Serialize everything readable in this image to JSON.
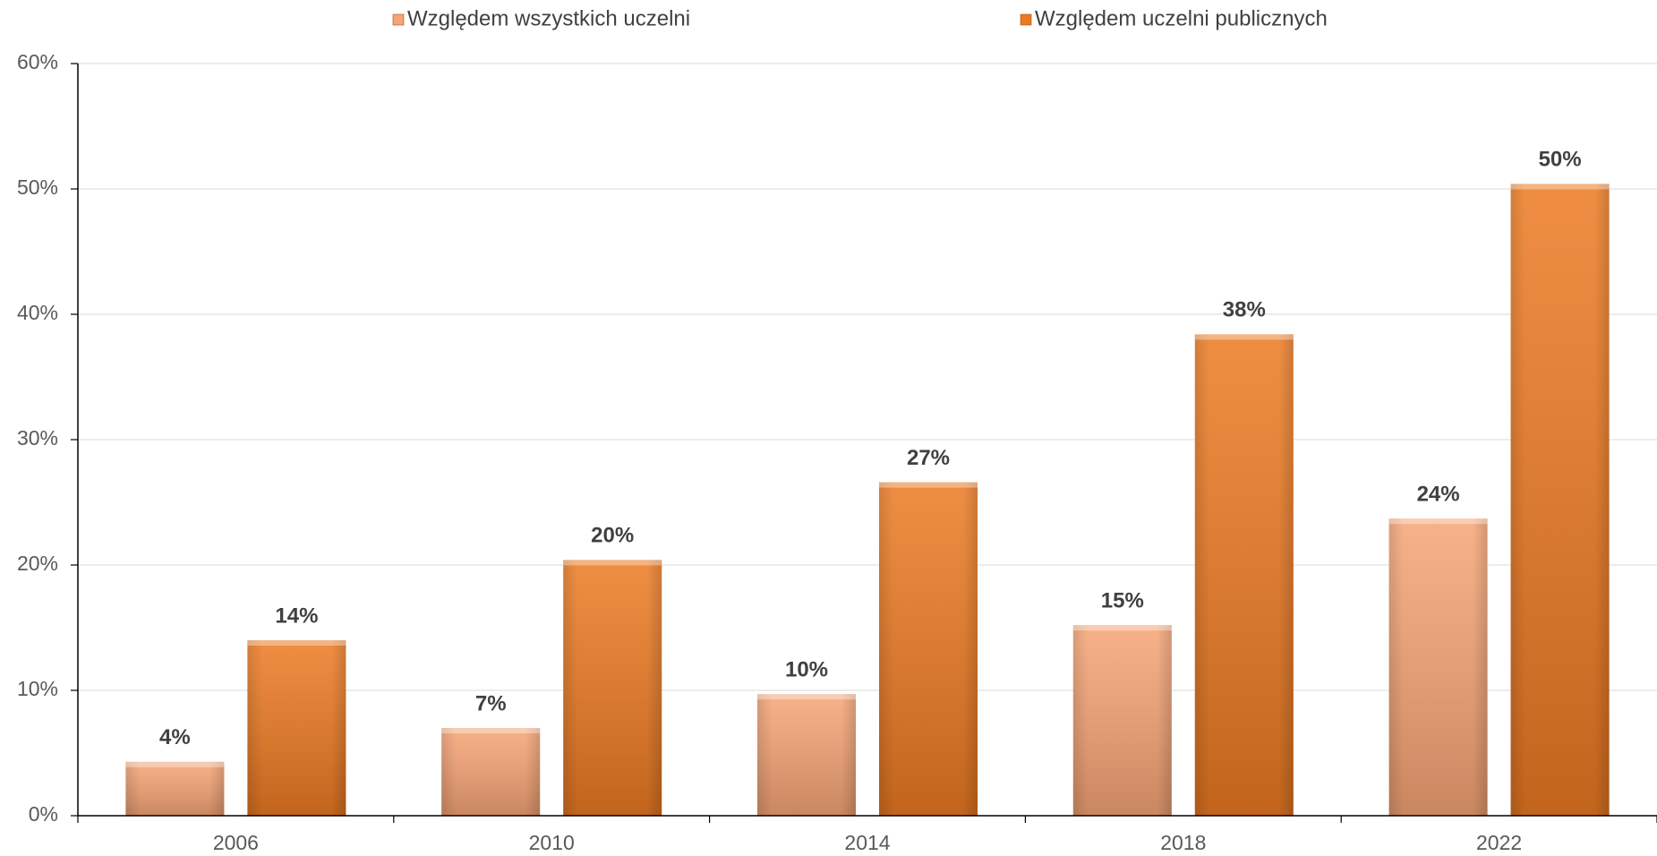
{
  "chart_data": {
    "type": "bar",
    "categories": [
      "2006",
      "2010",
      "2014",
      "2018",
      "2022"
    ],
    "series": [
      {
        "name": "Względem wszystkich uczelni",
        "color": "#f6a475",
        "values": [
          4.3,
          7.0,
          9.7,
          15.2,
          23.7
        ],
        "value_labels": [
          "4%",
          "7%",
          "10%",
          "15%",
          "24%"
        ]
      },
      {
        "name": "Względem uczelni publicznych",
        "color": "#ec7a22",
        "values": [
          14.0,
          20.4,
          26.6,
          38.4,
          50.4
        ],
        "value_labels": [
          "14%",
          "20%",
          "27%",
          "38%",
          "50%"
        ]
      }
    ],
    "ylim": [
      0,
      60
    ],
    "yticks": [
      {
        "value": 0,
        "label": "0%"
      },
      {
        "value": 10,
        "label": "10%"
      },
      {
        "value": 20,
        "label": "20%"
      },
      {
        "value": 30,
        "label": "30%"
      },
      {
        "value": 40,
        "label": "40%"
      },
      {
        "value": 50,
        "label": "50%"
      },
      {
        "value": 60,
        "label": "60%"
      }
    ],
    "grid": true,
    "legend": "top"
  }
}
